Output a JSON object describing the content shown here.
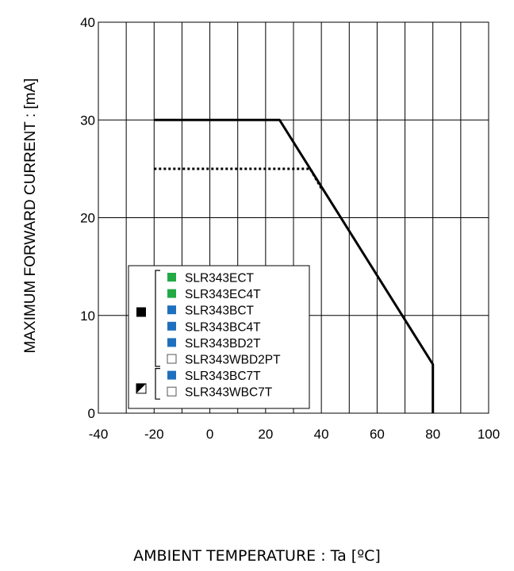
{
  "chart_data": {
    "type": "line",
    "title": "",
    "xlabel": "AMBIENT TEMPERATURE : Ta [ºC]",
    "ylabel": "MAXIMUM FORWARD CURRENT :  [mA]",
    "xlim": [
      -40,
      100
    ],
    "ylim": [
      0,
      40
    ],
    "x_ticks": [
      "-40",
      "-20",
      "0",
      "20",
      "40",
      "60",
      "80",
      "100"
    ],
    "y_ticks": [
      "0",
      "10",
      "20",
      "30",
      "40"
    ],
    "x_gridlines_every": 10,
    "y_gridlines_every": 10,
    "grid": true,
    "legend_position": "bottom-left",
    "series": [
      {
        "style": "solid",
        "color": "#000000",
        "marker": "solid-black-square",
        "x": [
          -20,
          25,
          80,
          80
        ],
        "y": [
          30,
          30,
          5,
          0
        ]
      },
      {
        "style": "dotted",
        "color": "#000000",
        "marker": "half-black-square",
        "x": [
          -20,
          36,
          40
        ],
        "y": [
          25,
          25,
          23
        ]
      }
    ],
    "legend": {
      "group1": {
        "marker": "solid-black-square",
        "items": [
          {
            "label": "SLR343ECT",
            "color": "#22aa44",
            "filled": true
          },
          {
            "label": "SLR343EC4T",
            "color": "#22aa44",
            "filled": true
          },
          {
            "label": "SLR343BCT",
            "color": "#1f6fbf",
            "filled": true
          },
          {
            "label": "SLR343BC4T",
            "color": "#1f6fbf",
            "filled": true
          },
          {
            "label": "SLR343BD2T",
            "color": "#1f6fbf",
            "filled": true
          },
          {
            "label": "SLR343WBD2PT",
            "color": "#ffffff",
            "filled": false
          }
        ]
      },
      "group2": {
        "marker": "half-black-square",
        "items": [
          {
            "label": "SLR343BC7T",
            "color": "#1f6fbf",
            "filled": true
          },
          {
            "label": "SLR343WBC7T",
            "color": "#ffffff",
            "filled": false
          }
        ]
      }
    }
  }
}
